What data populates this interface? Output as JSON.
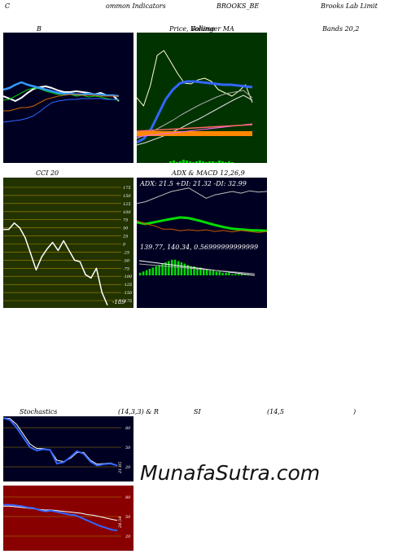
{
  "header": {
    "c1": "C",
    "c2": "ommon  Indicators",
    "c3": "BROOKS_BE",
    "c4": "Brooks Lab Limit"
  },
  "bands_title": {
    "b": "B",
    "price": "Price,  Volume",
    "mid": "Bollinger  MA",
    "bands": "Bands 20,2"
  },
  "cci": {
    "title": "CCI 20",
    "value_label": "-189",
    "ticks": [
      "175",
      "150",
      "125",
      "100",
      "75",
      "50",
      "25",
      "0",
      "-25",
      "-50",
      "-75",
      "-100",
      "-125",
      "-150",
      "-175"
    ]
  },
  "macd": {
    "title_adx": "ADX  & MACD 12,26,9",
    "adx_line": "ADX: 21.5  +DI: 21.32  -DI: 32.99",
    "macd_line": "139.77,  140.34,  0.56999999999999"
  },
  "stoch": {
    "title_a": "Stochastics",
    "title_b": "(14,3,3) & R",
    "title_c": "SI",
    "title_d": "(14,5",
    "title_e": ")",
    "ticks": [
      "80",
      "50",
      "20"
    ],
    "value": "21.95"
  },
  "rsi": {
    "ticks": [
      "80",
      "50",
      "20"
    ],
    "value": "28.54"
  },
  "watermark": "MunafaSutra.com",
  "colors": {
    "dark_bg": "#000022",
    "green_bg": "#003300",
    "olive_bg": "#223300",
    "red_bg": "#880000",
    "blue": "#3366ff",
    "grid_gold": "#aa8800"
  },
  "chart_data": [
    {
      "type": "line",
      "name": "bollinger_bands",
      "series": [
        {
          "values": [
            118,
            121,
            124,
            120,
            114,
            109,
            107,
            106,
            108,
            111,
            113,
            113,
            112,
            113,
            114,
            116,
            114,
            117,
            117,
            124
          ]
        },
        {
          "values": [
            123,
            122,
            118,
            114,
            110,
            108,
            109,
            112,
            114,
            116,
            116,
            116,
            118,
            117,
            119,
            118,
            119,
            121,
            122,
            123
          ]
        },
        {
          "values": [
            110,
            108,
            104,
            101,
            104,
            106,
            108,
            110,
            112,
            114,
            115,
            115,
            116,
            116,
            115,
            116,
            116,
            117,
            117,
            118
          ]
        },
        {
          "values": [
            136,
            136,
            134,
            132,
            132,
            130,
            126,
            122,
            120,
            118,
            117,
            116,
            116,
            117,
            117,
            117,
            118,
            118,
            118,
            118
          ]
        },
        {
          "values": [
            150,
            149,
            148,
            147,
            145,
            142,
            137,
            131,
            126,
            124,
            123,
            122,
            122,
            121,
            121,
            121,
            121,
            122,
            122,
            122
          ]
        }
      ]
    },
    {
      "type": "line",
      "name": "price_ma",
      "series": [
        {
          "values": [
            120,
            130,
            105,
            68,
            62,
            76,
            90,
            102,
            103,
            98,
            96,
            100,
            110,
            114,
            118,
            112,
            104,
            126
          ]
        },
        {
          "values": [
            175,
            170,
            158,
            140,
            122,
            110,
            102,
            100,
            100,
            101,
            102,
            103,
            104,
            104,
            105,
            106,
            107
          ]
        },
        {
          "values": [
            170,
            165,
            160,
            154,
            148,
            141,
            135,
            129,
            124,
            119,
            115,
            113,
            111,
            120
          ]
        },
        {
          "values": [
            178,
            175,
            171,
            167,
            162,
            157,
            151,
            146,
            140,
            134,
            128,
            122,
            117,
            123
          ]
        }
      ]
    },
    {
      "type": "line",
      "name": "cci",
      "ylim": [
        -175,
        175
      ],
      "values": [
        45,
        45,
        65,
        50,
        20,
        -30,
        -80,
        -40,
        -15,
        5,
        -20,
        10,
        -20,
        -50,
        -55,
        -95,
        -105,
        -75,
        -150,
        -189
      ]
    },
    {
      "type": "line",
      "name": "adx_di",
      "series": [
        {
          "name": "ADX",
          "values": [
            24.0,
            23.5,
            24.0,
            24.5,
            25.0,
            25.4,
            25.2,
            24.6,
            23.9,
            23.2,
            22.6,
            22.1,
            21.9,
            21.7,
            21.6,
            21.5
          ]
        },
        {
          "name": "+DI",
          "values": [
            24.5,
            23.5,
            23.0,
            22.0,
            22.0,
            21.5,
            21.8,
            21.5,
            21.8,
            21.3,
            21.6,
            21.2,
            21.6,
            21.3,
            21.0,
            21.32
          ]
        },
        {
          "name": "-DI",
          "values": [
            29.5,
            30.0,
            31.0,
            32.0,
            33.0,
            33.5,
            34.0,
            32.5,
            31.0,
            32.0,
            32.5,
            33.0,
            32.5,
            33.2,
            32.8,
            32.99
          ]
        }
      ]
    },
    {
      "type": "bar",
      "name": "macd_histogram",
      "values": [
        2,
        3,
        4,
        5,
        6,
        7,
        8,
        9,
        10,
        11,
        12,
        12,
        11,
        10,
        9,
        8,
        7,
        7,
        6,
        6,
        5,
        5,
        4,
        4,
        3,
        3,
        2,
        2,
        2,
        1,
        1,
        1,
        1,
        0.5,
        0.5
      ]
    },
    {
      "type": "line",
      "name": "stochastics",
      "ylim": [
        0,
        100
      ],
      "series": [
        {
          "values": [
            95,
            92,
            80,
            65,
            50,
            45,
            47,
            46,
            25,
            27,
            35,
            44,
            40,
            28,
            22,
            24,
            25,
            21.95
          ]
        },
        {
          "values": [
            95,
            94,
            85,
            70,
            55,
            48,
            48,
            46,
            30,
            28,
            33,
            42,
            42,
            30,
            24,
            25,
            26,
            22
          ]
        }
      ]
    },
    {
      "type": "line",
      "name": "rsi",
      "ylim": [
        0,
        100
      ],
      "series": [
        {
          "values": [
            68,
            68,
            67,
            66,
            64,
            63,
            60,
            58,
            59,
            57,
            55,
            53,
            52,
            48,
            44,
            40,
            36,
            33,
            30,
            28.54
          ]
        },
        {
          "values": [
            66,
            66,
            65,
            64,
            63,
            62,
            61,
            60,
            60,
            59,
            58,
            57,
            56,
            55,
            53,
            52,
            50,
            48,
            46,
            44
          ]
        }
      ]
    }
  ]
}
